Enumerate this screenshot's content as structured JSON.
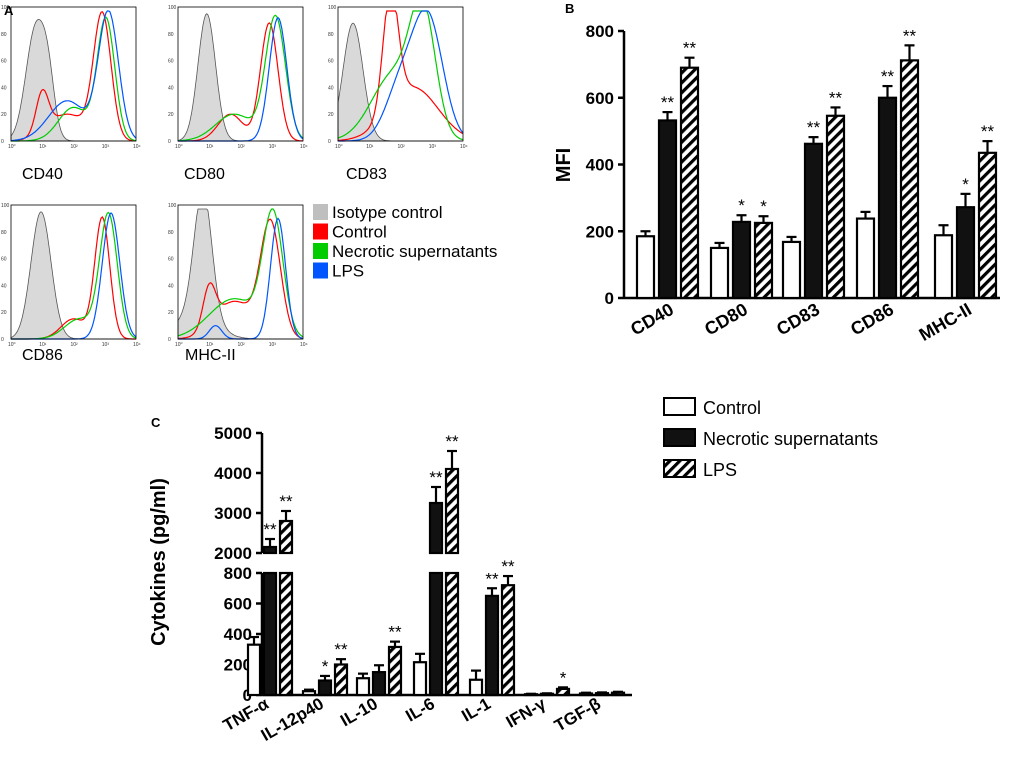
{
  "panels": {
    "A": {
      "letter": "A",
      "histograms": [
        {
          "label": "CD40"
        },
        {
          "label": "CD80"
        },
        {
          "label": "CD83"
        },
        {
          "label": "CD86"
        },
        {
          "label": "MHC-II"
        }
      ],
      "y_ticks": [
        "0",
        "20",
        "40",
        "60",
        "80",
        "100"
      ],
      "x_ticks": [
        "10⁰",
        "10¹",
        "10²",
        "10³",
        "10⁴"
      ],
      "legend": [
        {
          "label": "Isotype control",
          "color": "#bfbfbf"
        },
        {
          "label": "Control",
          "color": "#ff0000"
        },
        {
          "label": "Necrotic supernatants",
          "color": "#00cc00"
        },
        {
          "label": "LPS",
          "color": "#0055ff"
        }
      ]
    },
    "B": {
      "letter": "B"
    },
    "C": {
      "letter": "C"
    }
  },
  "legend_bars": [
    {
      "label": "Control",
      "style": "open"
    },
    {
      "label": "Necrotic supernatants",
      "style": "filled"
    },
    {
      "label": "LPS",
      "style": "hatched"
    }
  ],
  "chart_data": [
    {
      "panel": "B",
      "type": "bar",
      "ylabel": "MFI",
      "ylim": [
        0,
        800
      ],
      "yticks": [
        0,
        200,
        400,
        600,
        800
      ],
      "categories": [
        "CD40",
        "CD80",
        "CD83",
        "CD86",
        "MHC-II"
      ],
      "series": [
        {
          "name": "Control",
          "values": [
            185,
            150,
            168,
            238,
            188
          ],
          "errors": [
            15,
            15,
            15,
            20,
            30
          ],
          "marks": [
            "",
            "",
            "",
            "",
            ""
          ]
        },
        {
          "name": "Necrotic supernatants",
          "values": [
            532,
            228,
            462,
            600,
            272
          ],
          "errors": [
            25,
            20,
            20,
            35,
            40
          ],
          "marks": [
            "**",
            "*",
            "**",
            "**",
            "*"
          ]
        },
        {
          "name": "LPS",
          "values": [
            690,
            225,
            546,
            712,
            435
          ],
          "errors": [
            30,
            20,
            25,
            45,
            35
          ],
          "marks": [
            "**",
            "*",
            "**",
            "**",
            "**"
          ]
        }
      ]
    },
    {
      "panel": "C",
      "type": "bar",
      "ylabel": "Cytokines (pg/ml)",
      "axis_break": [
        800,
        2000
      ],
      "ylim_lower": [
        0,
        800
      ],
      "ylim_upper": [
        2000,
        5000
      ],
      "yticks_lower": [
        0,
        200,
        400,
        600,
        800
      ],
      "yticks_upper": [
        2000,
        3000,
        4000,
        5000
      ],
      "categories": [
        "TNF-α",
        "IL-12p40",
        "IL-10",
        "IL-6",
        "IL-1",
        "IFN-γ",
        "TGF-β"
      ],
      "series": [
        {
          "name": "Control",
          "values": [
            330,
            25,
            110,
            215,
            100,
            5,
            10
          ],
          "errors": [
            50,
            10,
            30,
            55,
            60,
            3,
            5
          ],
          "marks": [
            "",
            "",
            "",
            "",
            "",
            "",
            ""
          ]
        },
        {
          "name": "Necrotic supernatants",
          "values": [
            2150,
            95,
            150,
            3250,
            650,
            8,
            12
          ],
          "errors": [
            200,
            30,
            45,
            400,
            50,
            3,
            5
          ],
          "marks": [
            "**",
            "*",
            "",
            "**",
            "**",
            "",
            ""
          ]
        },
        {
          "name": "LPS",
          "values": [
            2800,
            200,
            315,
            4100,
            720,
            40,
            15
          ],
          "errors": [
            250,
            35,
            35,
            450,
            60,
            10,
            6
          ],
          "marks": [
            "**",
            "**",
            "**",
            "**",
            "**",
            "*",
            ""
          ]
        }
      ]
    }
  ]
}
